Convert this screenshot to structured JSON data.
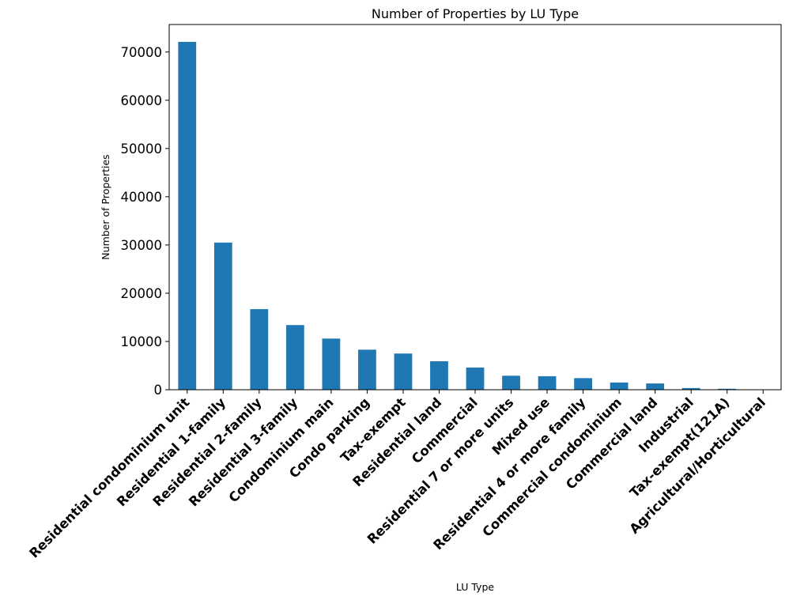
{
  "chart_data": {
    "type": "bar",
    "title": "Number of Properties by LU Type",
    "xlabel": "LU Type",
    "ylabel": "Number of Properties",
    "ylim": [
      0,
      75700
    ],
    "yticks": [
      0,
      10000,
      20000,
      30000,
      40000,
      50000,
      60000,
      70000
    ],
    "grid": false,
    "legend": "none",
    "bar_color": "#1f77b4",
    "categories": [
      "Residential condominium unit",
      "Residential 1-family",
      "Residential 2-family",
      "Residential 3-family",
      "Condominium main",
      "Condo parking",
      "Tax-exempt",
      "Residential land",
      "Commercial",
      "Residential 7 or more units",
      "Mixed use",
      "Residential 4 or more family",
      "Commercial condominium",
      "Commercial land",
      "Industrial",
      "Tax-exempt(121A)",
      "Agricultural/Horticultural"
    ],
    "values": [
      72100,
      30500,
      16700,
      13400,
      10600,
      8300,
      7500,
      5900,
      4600,
      2900,
      2800,
      2400,
      1500,
      1300,
      350,
      200,
      30
    ]
  }
}
